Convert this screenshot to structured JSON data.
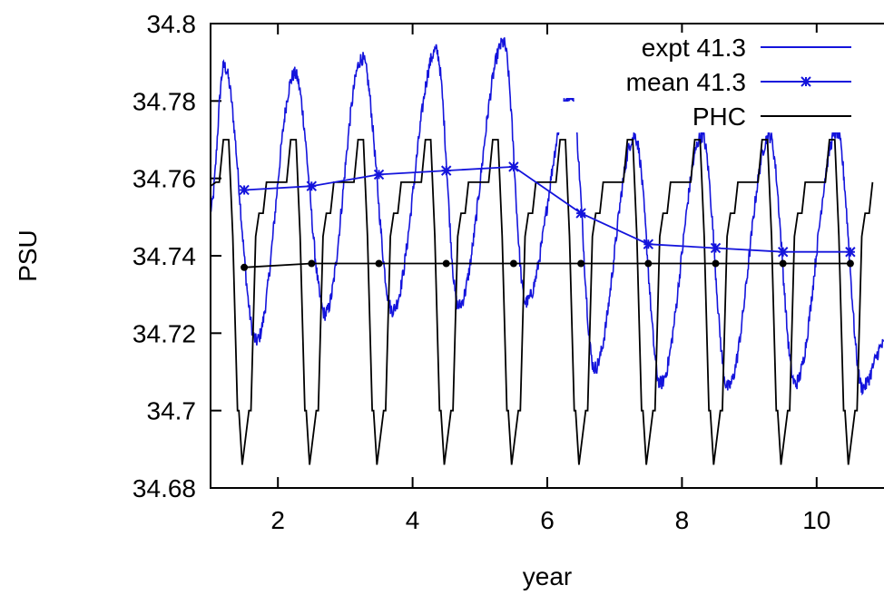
{
  "chart_data": {
    "type": "line",
    "title": "",
    "xlabel": "year",
    "ylabel": "PSU",
    "xlim": [
      1,
      11
    ],
    "ylim": [
      34.68,
      34.8
    ],
    "x_ticks": [
      2,
      4,
      6,
      8,
      10
    ],
    "x_tick_labels": [
      "2",
      "4",
      "6",
      "8",
      "10"
    ],
    "y_ticks": [
      34.68,
      34.7,
      34.72,
      34.74,
      34.76,
      34.78,
      34.8
    ],
    "y_tick_labels": [
      "34.68",
      "34.7",
      "34.72",
      "34.74",
      "34.76",
      "34.78",
      "34.8"
    ],
    "grid": false,
    "legend_position": "top-right",
    "series": [
      {
        "name": "expt 41.3",
        "color": "#1414dc",
        "style": "line",
        "seasonal": {
          "max": [
            34.789,
            34.787,
            34.791,
            34.793,
            34.795,
            34.782,
            34.771,
            34.771,
            34.771,
            34.772
          ],
          "max_x": [
            1.2,
            2.25,
            3.25,
            4.35,
            5.35,
            6.35,
            7.3,
            8.3,
            9.3,
            10.3
          ],
          "min": [
            34.718,
            34.725,
            34.726,
            34.727,
            34.728,
            34.711,
            34.707,
            34.706,
            34.707,
            34.706
          ],
          "min_x": [
            1.68,
            2.7,
            3.7,
            4.68,
            5.68,
            6.7,
            7.68,
            8.68,
            9.68,
            10.68
          ],
          "start": 34.752,
          "end": 34.717
        }
      },
      {
        "name": "mean 41.3",
        "color": "#1414dc",
        "style": "linespoints",
        "marker": "asterisk",
        "x": [
          1.5,
          2.5,
          3.5,
          4.5,
          5.5,
          6.5,
          7.5,
          8.5,
          9.5,
          10.5
        ],
        "y": [
          34.757,
          34.758,
          34.761,
          34.762,
          34.763,
          34.751,
          34.743,
          34.742,
          34.741,
          34.741
        ]
      },
      {
        "name": "PHC",
        "color": "#000000",
        "style": "line",
        "seasonal": {
          "max": 34.77,
          "min": 34.686,
          "plateau_high": 34.759,
          "start": 34.758
        }
      },
      {
        "name": "",
        "color": "#000000",
        "style": "linespoints",
        "marker": "circle",
        "x": [
          1.5,
          2.5,
          3.5,
          4.5,
          5.5,
          6.5,
          7.5,
          8.5,
          9.5,
          10.5
        ],
        "y": [
          34.737,
          34.738,
          34.738,
          34.738,
          34.738,
          34.738,
          34.738,
          34.738,
          34.738,
          34.738
        ]
      }
    ]
  }
}
